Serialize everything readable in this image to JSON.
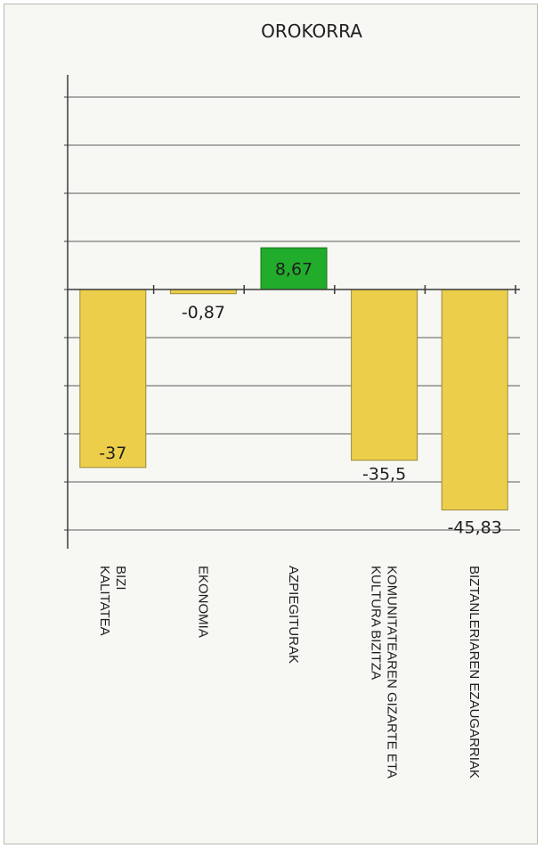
{
  "chart_data": {
    "type": "bar",
    "title": "OROKORRA",
    "categories": [
      [
        "BIZI",
        "KALITATEA"
      ],
      [
        "EKONOMIA"
      ],
      [
        "AZPIEGITURAK"
      ],
      [
        "KOMUNITATEAREN GIZARTE ETA",
        "KULTURA BIZITZA"
      ],
      [
        "BIZTANLERIAREN EZAUGARRIAK"
      ]
    ],
    "values": [
      -37,
      -0.87,
      8.67,
      -35.5,
      -45.83
    ],
    "value_labels": [
      "-37",
      "-0,87",
      "8,67",
      "-35,5",
      "-45,83"
    ],
    "ylim": [
      -50,
      40
    ],
    "grid": true,
    "colors": {
      "negative": "#ecce4a",
      "negative_border": "#9a8a3a",
      "positive": "#22ac2c",
      "positive_border": "#16701c"
    }
  }
}
